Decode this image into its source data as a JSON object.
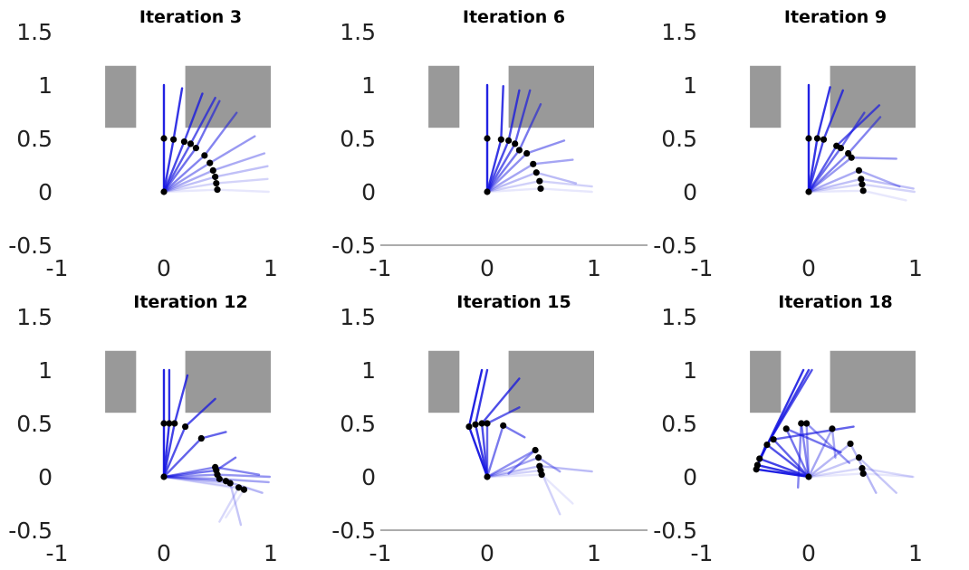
{
  "colors": {
    "obstacle": "#999999",
    "link": "#1515e0",
    "joint": "#000000",
    "axis": "#7a7a7a",
    "text": "#222222"
  },
  "chart_data": [
    {
      "type": "line",
      "title": "Iteration 3",
      "xlim": [
        -1,
        1.5
      ],
      "ylim": [
        -0.5,
        1.5
      ],
      "xticks": [
        -1,
        0,
        1
      ],
      "xtick_labels": [
        "-1",
        "0",
        "1"
      ],
      "yticks": [
        -0.5,
        0,
        0.5,
        1,
        1.5
      ],
      "ytick_labels": [
        "-0.5",
        "0",
        "0.5",
        "1",
        "1.5"
      ],
      "show_x_axis_line": false,
      "obstacles": [
        {
          "x": [
            -0.55,
            -0.26
          ],
          "y": [
            0.6,
            1.18
          ]
        },
        {
          "x": [
            0.2,
            1.0
          ],
          "y": [
            0.6,
            1.18
          ]
        }
      ],
      "origin": [
        0,
        0
      ],
      "elbows": [
        [
          0.0,
          0.5
        ],
        [
          0.09,
          0.49
        ],
        [
          0.19,
          0.47
        ],
        [
          0.25,
          0.45
        ],
        [
          0.3,
          0.41
        ],
        [
          0.38,
          0.34
        ],
        [
          0.43,
          0.27
        ],
        [
          0.46,
          0.2
        ],
        [
          0.48,
          0.14
        ],
        [
          0.49,
          0.08
        ],
        [
          0.5,
          0.02
        ]
      ],
      "tips": [
        [
          0.0,
          1.0
        ],
        [
          0.17,
          0.97
        ],
        [
          0.36,
          0.92
        ],
        [
          0.48,
          0.88
        ],
        [
          0.52,
          0.85
        ],
        [
          0.68,
          0.74
        ],
        [
          0.85,
          0.52
        ],
        [
          0.94,
          0.36
        ],
        [
          0.97,
          0.24
        ],
        [
          0.97,
          0.12
        ],
        [
          0.98,
          0.0
        ]
      ]
    },
    {
      "type": "line",
      "title": "Iteration 6",
      "xlim": [
        -1,
        1.5
      ],
      "ylim": [
        -0.5,
        1.5
      ],
      "xticks": [
        -1,
        0,
        1
      ],
      "xtick_labels": [
        "-1",
        "0",
        "1"
      ],
      "yticks": [
        -0.5,
        0,
        0.5,
        1,
        1.5
      ],
      "ytick_labels": [
        "-0.5",
        "0",
        "0.5",
        "1",
        "1.5"
      ],
      "show_x_axis_line": true,
      "obstacles": [
        {
          "x": [
            -0.55,
            -0.26
          ],
          "y": [
            0.6,
            1.18
          ]
        },
        {
          "x": [
            0.2,
            1.0
          ],
          "y": [
            0.6,
            1.18
          ]
        }
      ],
      "origin": [
        0,
        0
      ],
      "elbows": [
        [
          0.0,
          0.5
        ],
        [
          0.13,
          0.49
        ],
        [
          0.2,
          0.48
        ],
        [
          0.26,
          0.45
        ],
        [
          0.3,
          0.39
        ],
        [
          0.37,
          0.36
        ],
        [
          0.43,
          0.26
        ],
        [
          0.46,
          0.18
        ],
        [
          0.49,
          0.1
        ],
        [
          0.5,
          0.03
        ]
      ],
      "tips": [
        [
          0.0,
          1.0
        ],
        [
          0.15,
          0.99
        ],
        [
          0.3,
          0.95
        ],
        [
          0.4,
          0.95
        ],
        [
          0.5,
          0.82
        ],
        [
          0.72,
          0.48
        ],
        [
          0.8,
          0.3
        ],
        [
          0.83,
          0.08
        ],
        [
          0.98,
          0.05
        ],
        [
          0.98,
          0.0
        ]
      ]
    },
    {
      "type": "line",
      "title": "Iteration 9",
      "xlim": [
        -1,
        1.5
      ],
      "ylim": [
        -0.5,
        1.5
      ],
      "xticks": [
        -1,
        0,
        1
      ],
      "xtick_labels": [
        "-1",
        "0",
        "1"
      ],
      "yticks": [
        -0.5,
        0,
        0.5,
        1,
        1.5
      ],
      "ytick_labels": [
        "-0.5",
        "0",
        "0.5",
        "1",
        "1.5"
      ],
      "show_x_axis_line": false,
      "obstacles": [
        {
          "x": [
            -0.55,
            -0.26
          ],
          "y": [
            0.6,
            1.18
          ]
        },
        {
          "x": [
            0.2,
            1.0
          ],
          "y": [
            0.6,
            1.18
          ]
        }
      ],
      "origin": [
        0,
        0
      ],
      "elbows": [
        [
          0.0,
          0.5
        ],
        [
          0.08,
          0.5
        ],
        [
          0.14,
          0.49
        ],
        [
          0.26,
          0.43
        ],
        [
          0.3,
          0.41
        ],
        [
          0.37,
          0.36
        ],
        [
          0.4,
          0.32
        ],
        [
          0.47,
          0.2
        ],
        [
          0.49,
          0.12
        ],
        [
          0.5,
          0.07
        ],
        [
          0.51,
          0.01
        ]
      ],
      "tips": [
        [
          0.0,
          1.0
        ],
        [
          0.2,
          0.98
        ],
        [
          0.32,
          0.95
        ],
        [
          0.66,
          0.81
        ],
        [
          0.52,
          0.74
        ],
        [
          0.67,
          0.7
        ],
        [
          0.82,
          0.31
        ],
        [
          0.85,
          0.05
        ],
        [
          0.98,
          0.03
        ],
        [
          0.99,
          0.0
        ],
        [
          0.91,
          -0.08
        ]
      ]
    },
    {
      "type": "line",
      "title": "Iteration 12",
      "xlim": [
        -1,
        1.5
      ],
      "ylim": [
        -0.5,
        1.5
      ],
      "xticks": [
        -1,
        0,
        1
      ],
      "xtick_labels": [
        "-1",
        "0",
        "1"
      ],
      "yticks": [
        -0.5,
        0,
        0.5,
        1,
        1.5
      ],
      "ytick_labels": [
        "-0.5",
        "0",
        "0.5",
        "1",
        "1.5"
      ],
      "show_x_axis_line": false,
      "obstacles": [
        {
          "x": [
            -0.55,
            -0.26
          ],
          "y": [
            0.6,
            1.18
          ]
        },
        {
          "x": [
            0.2,
            1.0
          ],
          "y": [
            0.6,
            1.18
          ]
        }
      ],
      "origin": [
        0,
        0
      ],
      "elbows": [
        [
          0.0,
          0.5
        ],
        [
          0.05,
          0.5
        ],
        [
          0.1,
          0.5
        ],
        [
          0.2,
          0.47
        ],
        [
          0.35,
          0.36
        ],
        [
          0.49,
          0.06
        ],
        [
          0.48,
          0.09
        ],
        [
          0.5,
          0.02
        ],
        [
          0.52,
          -0.02
        ],
        [
          0.58,
          -0.04
        ],
        [
          0.62,
          -0.06
        ],
        [
          0.7,
          -0.1
        ],
        [
          0.75,
          -0.12
        ]
      ],
      "tips": [
        [
          0.0,
          1.0
        ],
        [
          0.05,
          1.0
        ],
        [
          0.22,
          0.95
        ],
        [
          0.48,
          0.73
        ],
        [
          0.58,
          0.42
        ],
        [
          0.67,
          0.18
        ],
        [
          0.89,
          0.02
        ],
        [
          0.99,
          0.0
        ],
        [
          0.98,
          -0.05
        ],
        [
          0.92,
          -0.15
        ],
        [
          0.72,
          -0.45
        ],
        [
          0.52,
          -0.42
        ],
        [
          0.58,
          -0.38
        ]
      ]
    },
    {
      "type": "line",
      "title": "Iteration 15",
      "xlim": [
        -1,
        1.5
      ],
      "ylim": [
        -0.5,
        1.5
      ],
      "xticks": [
        -1,
        0,
        1
      ],
      "xtick_labels": [
        "-1",
        "0",
        "1"
      ],
      "yticks": [
        -0.5,
        0,
        0.5,
        1,
        1.5
      ],
      "ytick_labels": [
        "-0.5",
        "0",
        "0.5",
        "1",
        "1.5"
      ],
      "show_x_axis_line": true,
      "obstacles": [
        {
          "x": [
            -0.55,
            -0.26
          ],
          "y": [
            0.6,
            1.18
          ]
        },
        {
          "x": [
            0.2,
            1.0
          ],
          "y": [
            0.6,
            1.18
          ]
        }
      ],
      "origin": [
        0,
        0
      ],
      "elbows": [
        [
          -0.17,
          0.47
        ],
        [
          -0.11,
          0.49
        ],
        [
          -0.05,
          0.5
        ],
        [
          0.0,
          0.5
        ],
        [
          0.15,
          0.48
        ],
        [
          0.45,
          0.25
        ],
        [
          0.48,
          0.18
        ],
        [
          0.49,
          0.1
        ],
        [
          0.5,
          0.06
        ],
        [
          0.51,
          0.02
        ]
      ],
      "tips": [
        [
          -0.05,
          1.0
        ],
        [
          0.0,
          1.0
        ],
        [
          0.3,
          0.92
        ],
        [
          0.3,
          0.65
        ],
        [
          0.35,
          0.37
        ],
        [
          0.2,
          0.03
        ],
        [
          0.68,
          0.05
        ],
        [
          0.98,
          0.05
        ],
        [
          0.68,
          -0.35
        ],
        [
          0.8,
          -0.25
        ]
      ]
    },
    {
      "type": "line",
      "title": "Iteration 18",
      "xlim": [
        -1,
        1.5
      ],
      "ylim": [
        -0.5,
        1.5
      ],
      "xticks": [
        -1,
        0,
        1
      ],
      "xtick_labels": [
        "-1",
        "0",
        "1"
      ],
      "yticks": [
        -0.5,
        0,
        0.5,
        1,
        1.5
      ],
      "ytick_labels": [
        "-0.5",
        "0",
        "0.5",
        "1",
        "1.5"
      ],
      "show_x_axis_line": false,
      "obstacles": [
        {
          "x": [
            -0.55,
            -0.26
          ],
          "y": [
            0.6,
            1.18
          ]
        },
        {
          "x": [
            0.2,
            1.0
          ],
          "y": [
            0.6,
            1.18
          ]
        }
      ],
      "origin": [
        0,
        0
      ],
      "elbows": [
        [
          -0.49,
          0.07
        ],
        [
          -0.48,
          0.11
        ],
        [
          -0.46,
          0.17
        ],
        [
          -0.39,
          0.3
        ],
        [
          -0.33,
          0.35
        ],
        [
          -0.21,
          0.45
        ],
        [
          -0.07,
          0.5
        ],
        [
          -0.02,
          0.5
        ],
        [
          0.22,
          0.45
        ],
        [
          0.39,
          0.31
        ],
        [
          0.47,
          0.18
        ],
        [
          0.5,
          0.08
        ],
        [
          0.51,
          0.03
        ]
      ],
      "tips": [
        [
          -0.4,
          0.3
        ],
        [
          -0.05,
          1.0
        ],
        [
          0.0,
          1.0
        ],
        [
          0.03,
          1.0
        ],
        [
          0.42,
          0.47
        ],
        [
          0.3,
          0.23
        ],
        [
          -0.1,
          -0.1
        ],
        [
          0.38,
          0.13
        ],
        [
          0.25,
          0.18
        ],
        [
          0.63,
          -0.15
        ],
        [
          0.82,
          -0.15
        ],
        [
          0.97,
          0.0
        ],
        [
          0.98,
          0.0
        ]
      ]
    }
  ]
}
